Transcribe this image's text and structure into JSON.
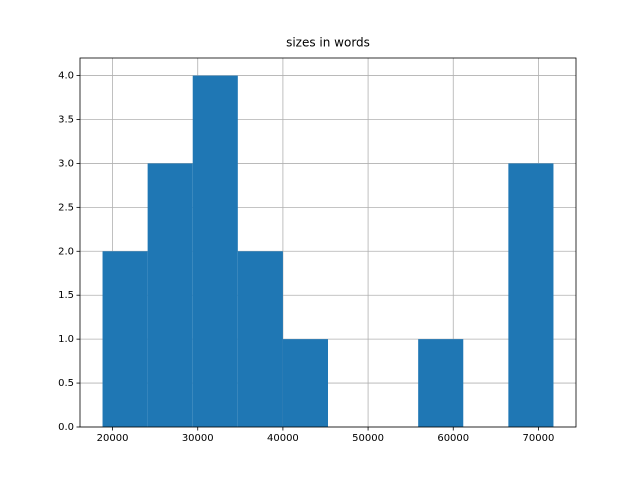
{
  "chart_data": {
    "type": "histogram",
    "title": "sizes in words",
    "bins": [
      18824,
      24118,
      29412,
      34706,
      40000,
      45294,
      50588,
      55882,
      61176,
      66471,
      71765
    ],
    "values": [
      2,
      3,
      4,
      2,
      1,
      0,
      0,
      1,
      0,
      3
    ],
    "color": "#1f77b4",
    "xlim": [
      16177,
      74412
    ],
    "xticks": [
      20000,
      30000,
      40000,
      50000,
      60000,
      70000
    ],
    "ylim": [
      0,
      4.2
    ],
    "yticks": [
      {
        "value": 0,
        "label": "0.0"
      },
      {
        "value": 0.5,
        "label": "0.5"
      },
      {
        "value": 1,
        "label": "1.0"
      },
      {
        "value": 1.5,
        "label": "1.5"
      },
      {
        "value": 2,
        "label": "2.0"
      },
      {
        "value": 2.5,
        "label": "2.5"
      },
      {
        "value": 3,
        "label": "3.0"
      },
      {
        "value": 3.5,
        "label": "3.5"
      },
      {
        "value": 4,
        "label": "4.0"
      }
    ],
    "grid": true
  }
}
